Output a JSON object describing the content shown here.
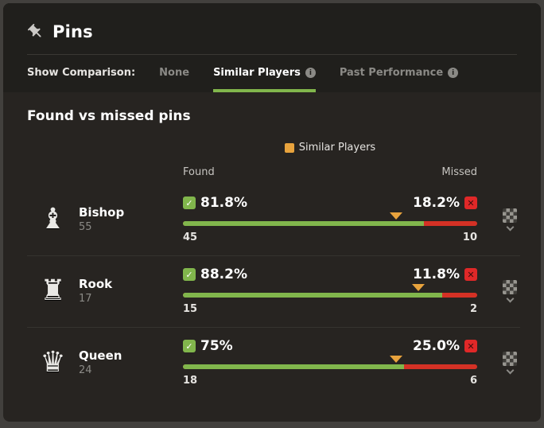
{
  "header": {
    "title": "Pins"
  },
  "comparison": {
    "label": "Show Comparison:",
    "tabs": [
      {
        "label": "None"
      },
      {
        "label": "Similar Players"
      },
      {
        "label": "Past Performance"
      }
    ],
    "active_tab": "Similar Players"
  },
  "section": {
    "title": "Found vs missed pins"
  },
  "chart_data": {
    "type": "bar",
    "title": "Found vs missed pins",
    "legend": [
      {
        "label": "Similar Players",
        "color": "#e8a33d"
      }
    ],
    "columns": [
      "Found",
      "Missed"
    ],
    "rows": [
      {
        "piece": "Bishop",
        "piece_glyph": "♝",
        "total": 55,
        "found_pct": "81.8%",
        "found_value": 81.8,
        "found_count": 45,
        "missed_pct": "18.2%",
        "missed_value": 18.2,
        "missed_count": 10,
        "similar_players_value": 72.5
      },
      {
        "piece": "Rook",
        "piece_glyph": "♜",
        "total": 17,
        "found_pct": "88.2%",
        "found_value": 88.2,
        "found_count": 15,
        "missed_pct": "11.8%",
        "missed_value": 11.8,
        "missed_count": 2,
        "similar_players_value": 80
      },
      {
        "piece": "Queen",
        "piece_glyph": "♛",
        "total": 24,
        "found_pct": "75%",
        "found_value": 75,
        "found_count": 18,
        "missed_pct": "25.0%",
        "missed_value": 25,
        "missed_count": 6,
        "similar_players_value": 72.5
      }
    ]
  },
  "colors": {
    "found_green": "#81b64c",
    "missed_red": "#d43125",
    "comparison_orange": "#e8a33d",
    "card_bg": "#272421",
    "header_bg": "#201f1c"
  }
}
